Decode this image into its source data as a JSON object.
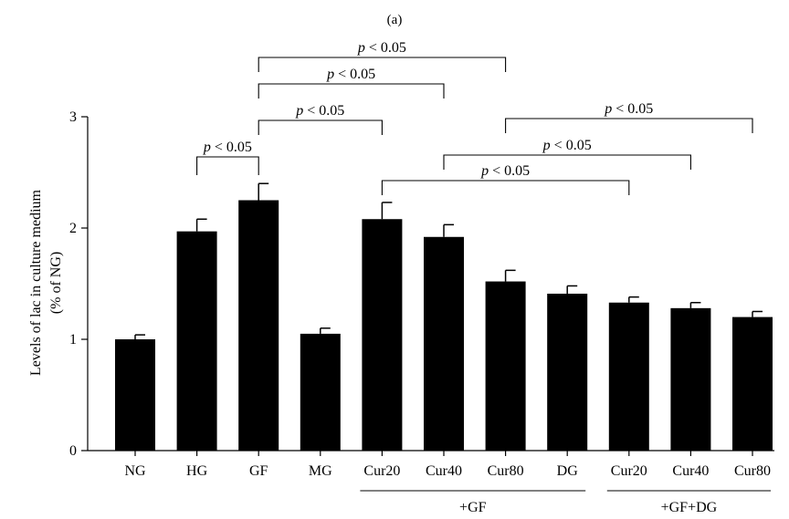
{
  "panel_label": "(a)",
  "chart_data": {
    "type": "bar",
    "ylabel": "Levels of lac in culture medium",
    "ylabel_unit": "(% of NG)",
    "ylim": [
      0,
      3
    ],
    "yticks": [
      0,
      1,
      2,
      3
    ],
    "categories": [
      "NG",
      "HG",
      "GF",
      "MG",
      "Cur20",
      "Cur40",
      "Cur80",
      "DG",
      "Cur20",
      "Cur40",
      "Cur80"
    ],
    "values": [
      1.0,
      1.97,
      2.25,
      1.05,
      2.08,
      1.92,
      1.52,
      1.41,
      1.33,
      1.28,
      1.2
    ],
    "errors": [
      0.04,
      0.11,
      0.15,
      0.05,
      0.15,
      0.11,
      0.1,
      0.07,
      0.05,
      0.05,
      0.05
    ],
    "groups": [
      {
        "label": "+GF",
        "from": 4,
        "to": 7
      },
      {
        "label": "+GF+DG",
        "from": 8,
        "to": 10
      }
    ],
    "significance": [
      {
        "from": 1,
        "to": 2,
        "text_p": "p",
        "text_rest": " < 0.05",
        "level": 3
      },
      {
        "from": 2,
        "to": 4,
        "text_p": "p",
        "text_rest": " < 0.05",
        "level": 4
      },
      {
        "from": 2,
        "to": 5,
        "text_p": "p",
        "text_rest": " < 0.05",
        "level": 5
      },
      {
        "from": 2,
        "to": 6,
        "text_p": "p",
        "text_rest": " < 0.05",
        "level": 6
      },
      {
        "from": 4,
        "to": 8,
        "text_p": "p",
        "text_rest": " < 0.05",
        "level": 0
      },
      {
        "from": 5,
        "to": 9,
        "text_p": "p",
        "text_rest": " < 0.05",
        "level": 1
      },
      {
        "from": 6,
        "to": 10,
        "text_p": "p",
        "text_rest": " < 0.05",
        "level": 2
      }
    ],
    "bar_color": "#000000"
  }
}
